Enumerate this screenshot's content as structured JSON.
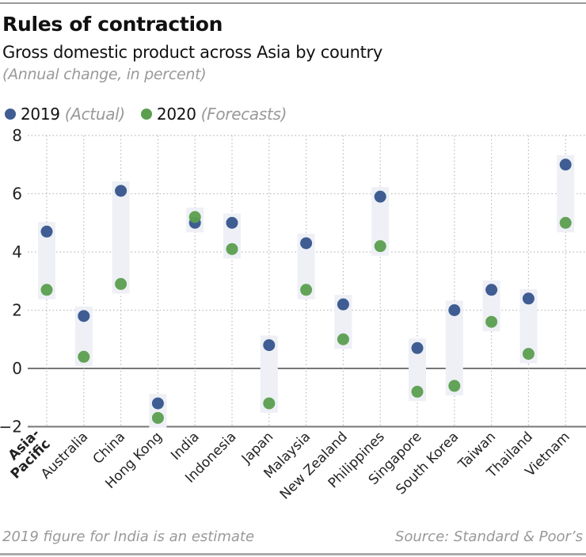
{
  "title": "Rules of contraction",
  "subtitle": "Gross domestic product across Asia by country",
  "unit_note": "(Annual change, in percent)",
  "footnote": "2019 figure for India is an estimate",
  "source": "Source: Standard & Poor’s",
  "legend": [
    {
      "year": "2019",
      "note": "(Actual)",
      "color": "#3f5d92"
    },
    {
      "year": "2020",
      "note": "(Forecasts)",
      "color": "#5a9e4e"
    }
  ],
  "chart_data": {
    "type": "scatter",
    "title": "Rules of contraction",
    "subtitle": "Gross domestic product across Asia by country",
    "ylabel": "(Annual change, in percent)",
    "ylim": [
      -2,
      8
    ],
    "yticks": [
      -2,
      0,
      2,
      4,
      6,
      8
    ],
    "ytick_labels": [
      "−2",
      "0",
      "2",
      "4",
      "6",
      "8"
    ],
    "grid": "dotted horizontal and vertical",
    "legend_position": "top-left",
    "categories": [
      "Asia-Pacific",
      "Australia",
      "China",
      "Hong Kong",
      "India",
      "Indonesia",
      "Japan",
      "Malaysia",
      "New Zealand",
      "Philippines",
      "Singapore",
      "South Korea",
      "Taiwan",
      "Thailand",
      "Vietnam"
    ],
    "series": [
      {
        "name": "2019 (Actual)",
        "color": "#3f5d92",
        "values": [
          4.7,
          1.8,
          6.1,
          -1.2,
          5.0,
          5.0,
          0.8,
          4.3,
          2.2,
          5.9,
          0.7,
          2.0,
          2.7,
          2.4,
          7.0
        ]
      },
      {
        "name": "2020 (Forecasts)",
        "color": "#5a9e4e",
        "values": [
          2.7,
          0.4,
          2.9,
          -1.7,
          5.2,
          4.1,
          -1.2,
          2.7,
          1.0,
          4.2,
          -0.8,
          -0.6,
          1.6,
          0.5,
          5.0
        ]
      }
    ]
  }
}
